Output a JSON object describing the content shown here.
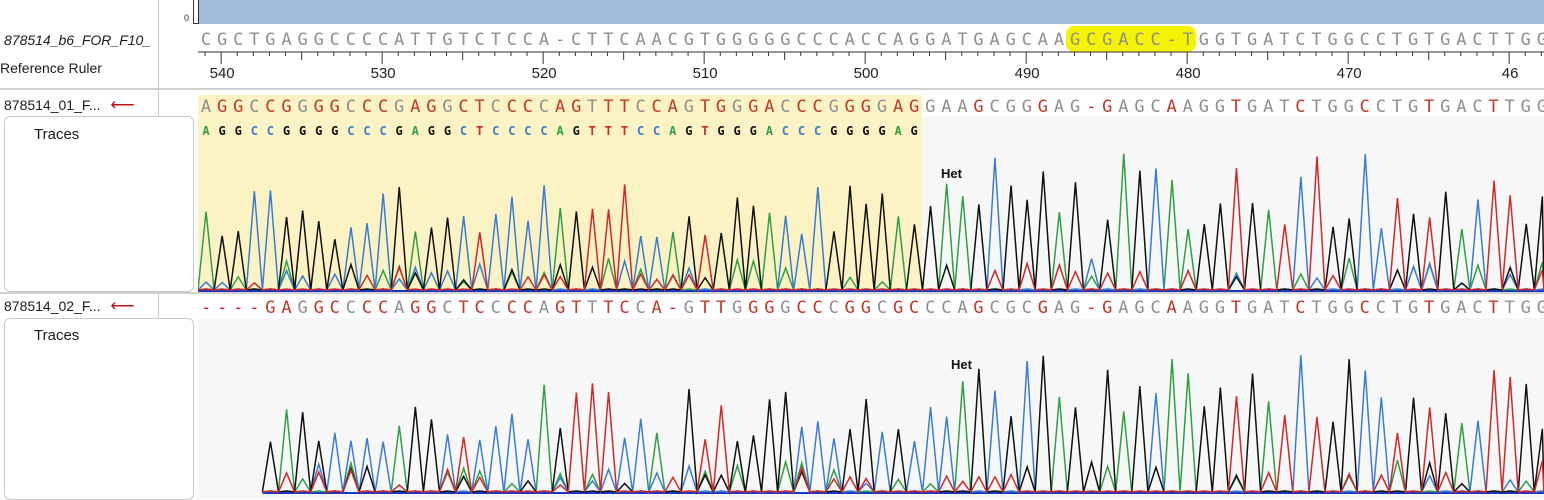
{
  "header": {
    "coverage_axis_zero": "0",
    "coverage_color": "#9ebcd9"
  },
  "consensus": {
    "label": "878514_b6_FOR_F10_",
    "sequence": "CGCTGAGGCCCCATTGTCTCCA-CTTCAACGTGGGGGCCCACCAGGATGAGCAAGCGACC-TGGTGATCTGGCCTGTGACTTGG",
    "highlight_text": "GCGACC-T",
    "highlight_color": "#f4f400"
  },
  "ruler": {
    "label": "Reference Ruler",
    "ticks": [
      "540",
      "530",
      "520",
      "510",
      "500",
      "490",
      "480",
      "470",
      "46"
    ]
  },
  "tracks": [
    {
      "name": "878514_01_F...",
      "arrow": "⟵",
      "consensus_sequence": "AGGCCGGGGCCCGAGGCTCCCCAGTTTCCAGTGGGACCCGGGGAGGAAGCGGGAG-GAGCAAGGTGATCTGGCCTGTGACTTGG",
      "called_bases": "AGGCCGGGGCCCGAGGCTCCCCAGTTTCCAGTGGGACCCGGGGAGGAAGCGGGAG GAGCAAGGTGATCTGGCCTGTGACTTGG",
      "traces_label": "Traces",
      "het_label": "Het",
      "trim_shade": "#fbf3c4"
    },
    {
      "name": "878514_02_F...",
      "arrow": "⟵",
      "consensus_sequence": "----GAGGCCCCAGGCTCCCCAGTTTCCA-GTTGGGGCCCGGCGCCCAGCGCGAG-GAGCAAGGTGATCTGGCCTGTGACTTGG",
      "called_bases": "    GAGGCCCCAGGCTCCCCAGTTTCCA GTTGGGGCCCGGCGCCCAGCGCGAG GAGCAAGGTGATCTGGCCTGTGACTTGG",
      "traces_label": "Traces",
      "het_label": "Het"
    }
  ],
  "base_colors": {
    "A": "#2fa043",
    "C": "#3a7dd0",
    "G": "#111111",
    "T": "#d0282c"
  }
}
